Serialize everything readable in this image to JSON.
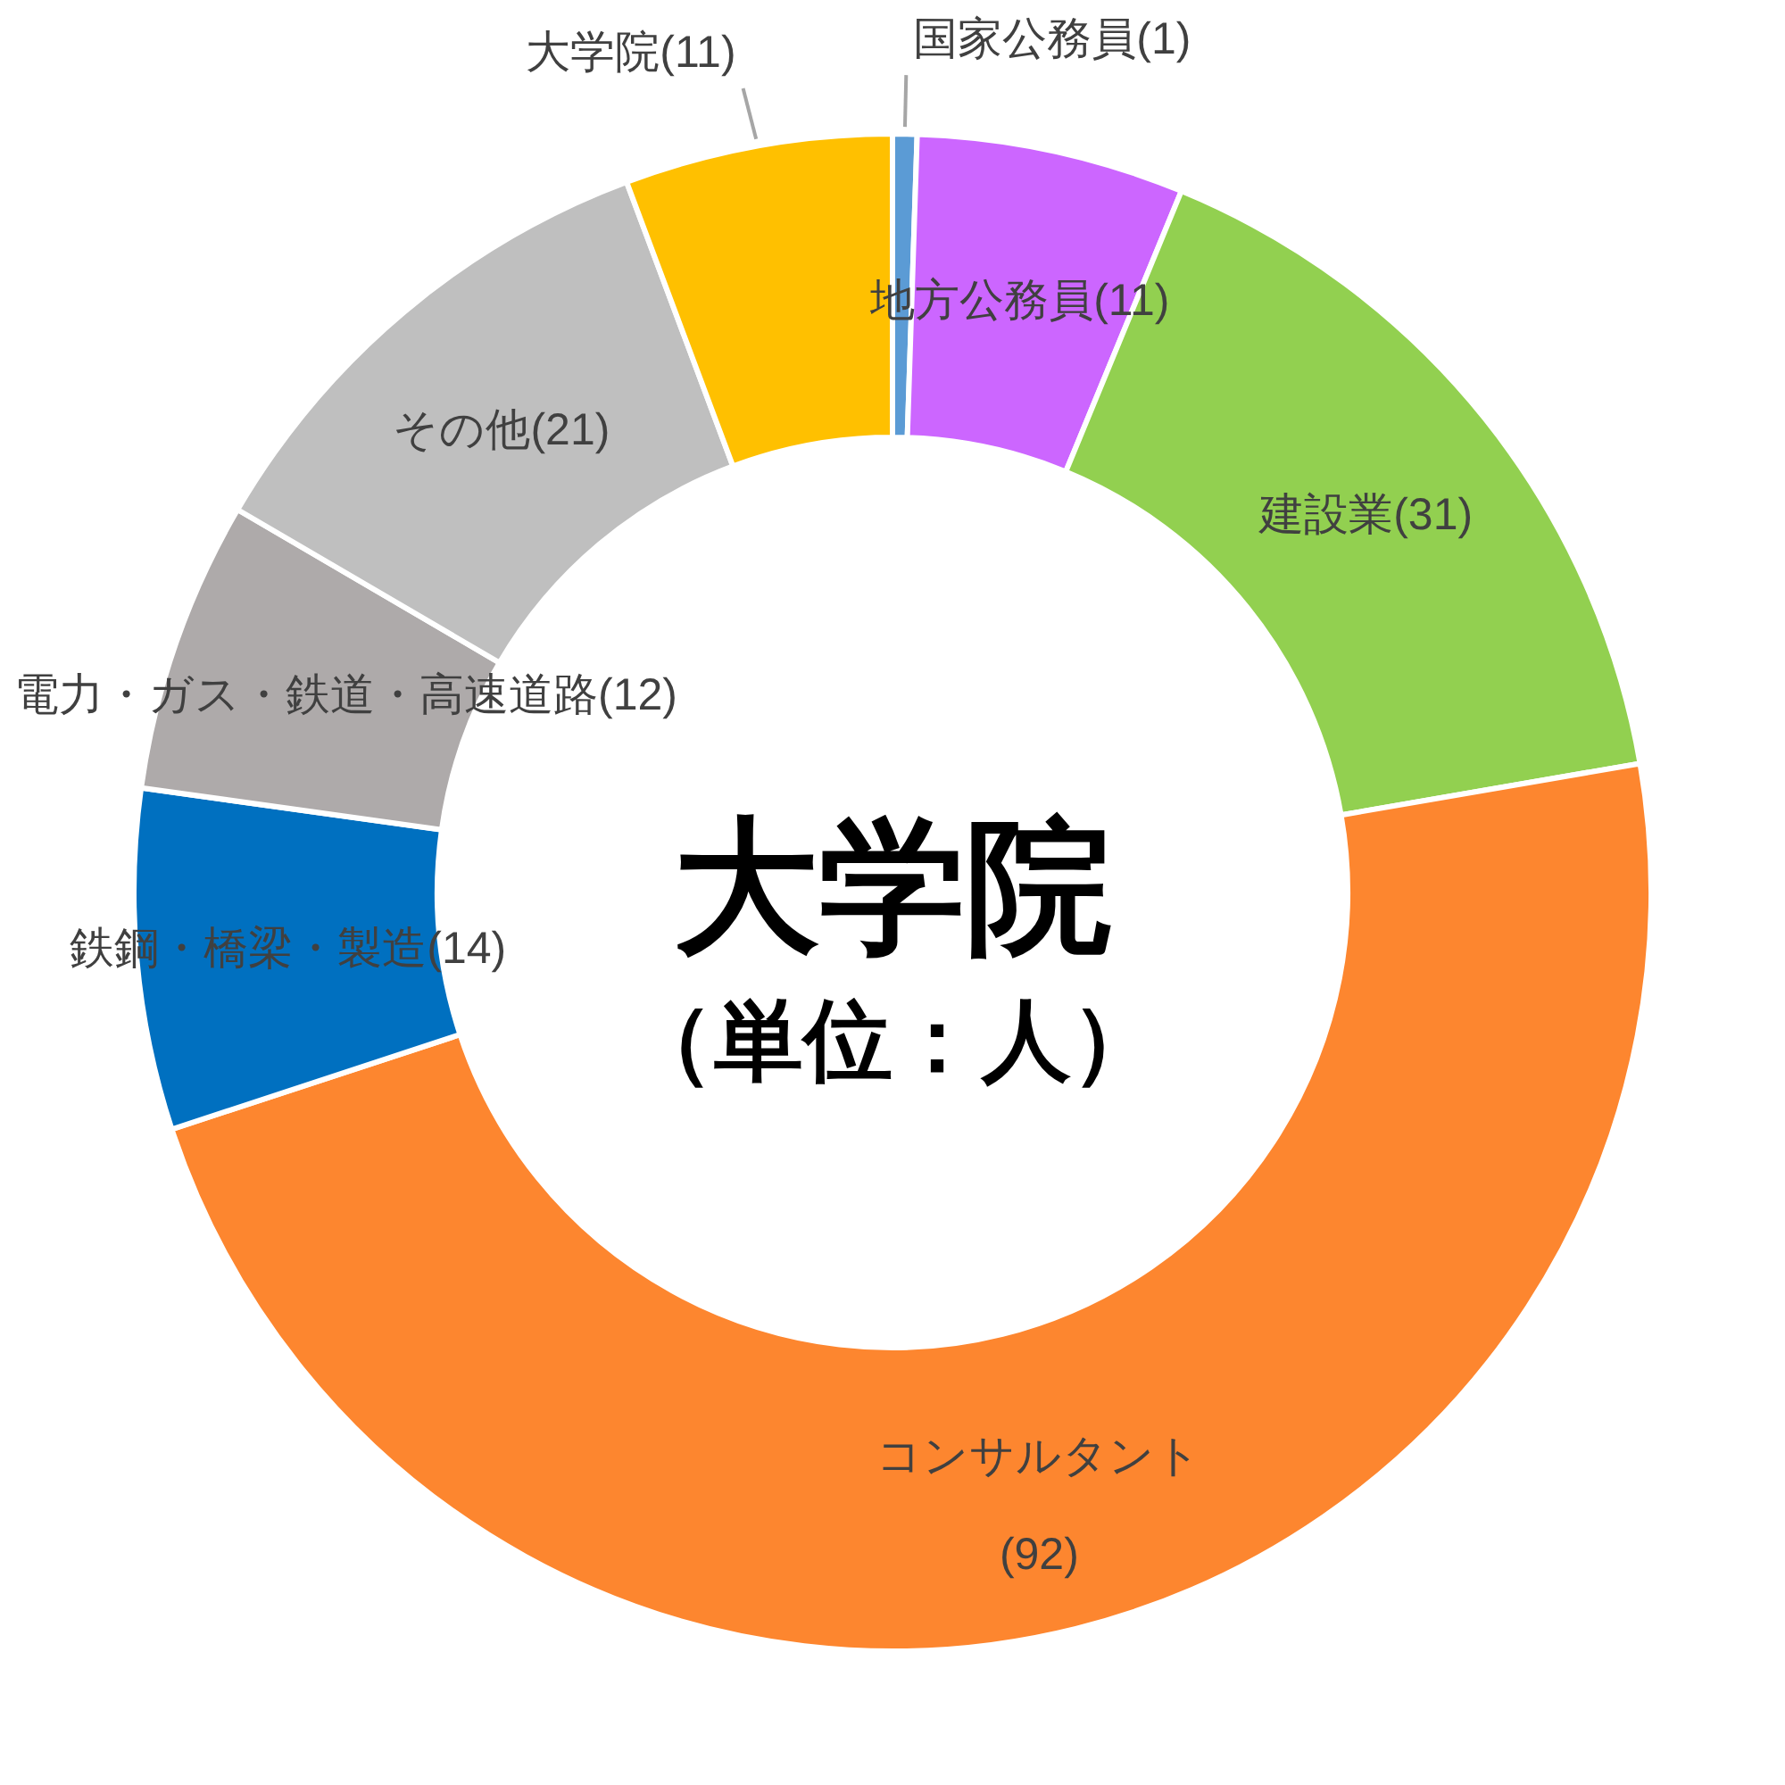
{
  "chart_data": {
    "type": "donut",
    "title": "大学院",
    "subtitle": "（単位：人）",
    "categories": [
      "国家公務員",
      "地方公務員",
      "建設業",
      "コンサルタント",
      "鉄鋼・橋梁・製造",
      "電力・ガス・鉄道・高速道路",
      "その他",
      "大学院"
    ],
    "values": [
      1,
      11,
      31,
      92,
      14,
      12,
      21,
      11
    ],
    "value_labels": [
      "(1)",
      "(11)",
      "(31)",
      "(92)",
      "(14)",
      "(12)",
      "(21)",
      "(11)"
    ],
    "colors": [
      "#5b9bd5",
      "#cc66ff",
      "#92d050",
      "#fd862f",
      "#0070c0",
      "#aeaaaa",
      "#bfbfbf",
      "#ffc000"
    ]
  }
}
